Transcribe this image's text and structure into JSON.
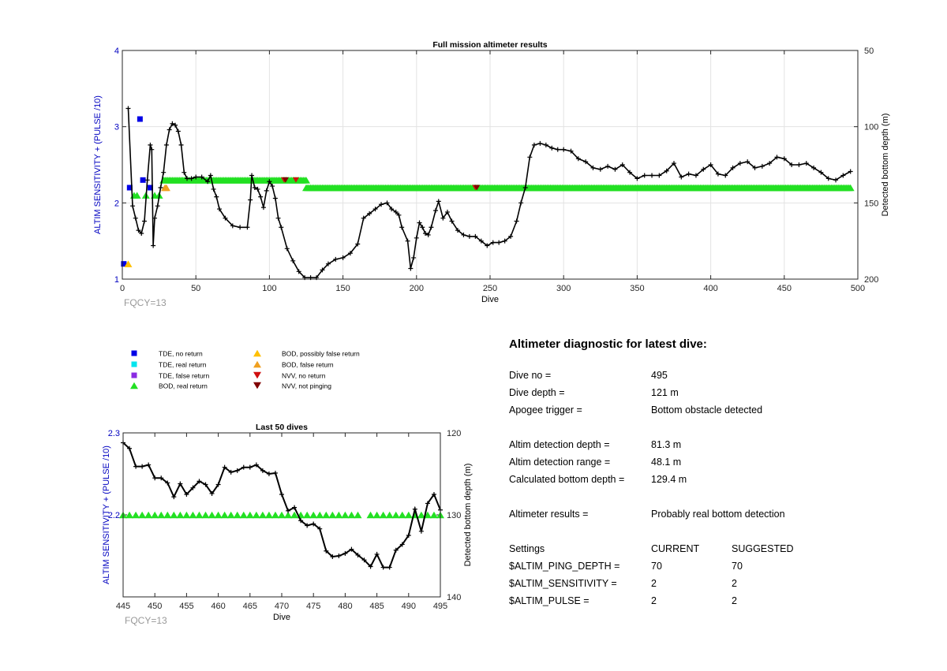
{
  "chart_data": [
    {
      "type": "scatter",
      "title": "Full mission altimeter results",
      "xlabel": "Dive",
      "ylabel_left": "ALTIM SENSITIVITY + (PULSE /10)",
      "ylabel_right": "Detected bottom depth (m)",
      "annotation": "FQCY=13",
      "xlim": [
        0,
        500
      ],
      "ylim_left": [
        1,
        4
      ],
      "ylim_right": [
        50,
        200
      ],
      "right_axis_reversed": true,
      "x_ticks": [
        0,
        50,
        100,
        150,
        200,
        250,
        300,
        350,
        400,
        450,
        500
      ],
      "y_left_ticks": [
        1,
        2,
        3,
        4
      ],
      "y_right_ticks": [
        50,
        100,
        150,
        200
      ],
      "grid": true,
      "markers": [
        {
          "name": "TDE, no return",
          "color": "#0000e6",
          "points": [
            [
              1,
              1.2
            ],
            [
              5,
              2.2
            ],
            [
              12,
              3.1
            ],
            [
              14,
              2.3
            ],
            [
              19,
              2.2
            ]
          ]
        },
        {
          "name": "BOD, possibly false return",
          "color": "#ffc000",
          "points": [
            [
              4,
              1.2
            ]
          ]
        },
        {
          "name": "BOD, false return",
          "color": "#f0a020",
          "points": [
            [
              29,
              2.2
            ],
            [
              30,
              2.2
            ]
          ]
        },
        {
          "name": "BOD, real return (2.3)",
          "color": "#22e022",
          "range": [
            28,
            125
          ],
          "y": 2.3
        },
        {
          "name": "BOD, real return (2.2)",
          "color": "#22e022",
          "range": [
            125,
            495
          ],
          "y": 2.2
        },
        {
          "name": "BOD, real return (early)",
          "color": "#22e022",
          "points": [
            [
              8,
              2.1
            ],
            [
              10,
              2.1
            ],
            [
              16,
              2.1
            ],
            [
              22,
              2.1
            ],
            [
              25,
              2.1
            ]
          ]
        },
        {
          "name": "NVV, no return",
          "color": "#d01010",
          "points": [
            [
              110,
              2.3
            ],
            [
              118,
              2.3
            ],
            [
              240,
              2.2
            ]
          ]
        },
        {
          "name": "NVV, not pinging",
          "color": "#800000",
          "points": [
            [
              111,
              2.3
            ],
            [
              241,
              2.2
            ]
          ]
        }
      ],
      "bottom_depth": [
        [
          4,
          88
        ],
        [
          7,
          152
        ],
        [
          9,
          160
        ],
        [
          11,
          168
        ],
        [
          13,
          170
        ],
        [
          15,
          162
        ],
        [
          17,
          135
        ],
        [
          19,
          112
        ],
        [
          20,
          115
        ],
        [
          21,
          178
        ],
        [
          22,
          160
        ],
        [
          24,
          152
        ],
        [
          26,
          140
        ],
        [
          28,
          130
        ],
        [
          30,
          112
        ],
        [
          32,
          102
        ],
        [
          34,
          98
        ],
        [
          36,
          99
        ],
        [
          38,
          103
        ],
        [
          40,
          112
        ],
        [
          42,
          130
        ],
        [
          44,
          134
        ],
        [
          47,
          134
        ],
        [
          50,
          133
        ],
        [
          54,
          133
        ],
        [
          58,
          136
        ],
        [
          60,
          132
        ],
        [
          62,
          141
        ],
        [
          64,
          146
        ],
        [
          66,
          154
        ],
        [
          70,
          160
        ],
        [
          75,
          165
        ],
        [
          80,
          166
        ],
        [
          85,
          166
        ],
        [
          87,
          148
        ],
        [
          88,
          132
        ],
        [
          90,
          140
        ],
        [
          92,
          141
        ],
        [
          94,
          146
        ],
        [
          96,
          153
        ],
        [
          98,
          142
        ],
        [
          100,
          136
        ],
        [
          102,
          139
        ],
        [
          104,
          147
        ],
        [
          106,
          160
        ],
        [
          108,
          166
        ],
        [
          112,
          180
        ],
        [
          116,
          188
        ],
        [
          120,
          195
        ],
        [
          124,
          199
        ],
        [
          128,
          199
        ],
        [
          132,
          199
        ],
        [
          136,
          194
        ],
        [
          140,
          190
        ],
        [
          145,
          187
        ],
        [
          150,
          186
        ],
        [
          155,
          183
        ],
        [
          160,
          177
        ],
        [
          164,
          160
        ],
        [
          168,
          157
        ],
        [
          172,
          154
        ],
        [
          176,
          151
        ],
        [
          180,
          150
        ],
        [
          183,
          154
        ],
        [
          186,
          156
        ],
        [
          188,
          158
        ],
        [
          190,
          166
        ],
        [
          194,
          175
        ],
        [
          196,
          193
        ],
        [
          198,
          186
        ],
        [
          200,
          173
        ],
        [
          202,
          163
        ],
        [
          204,
          166
        ],
        [
          206,
          170
        ],
        [
          208,
          171
        ],
        [
          210,
          166
        ],
        [
          213,
          155
        ],
        [
          215,
          149
        ],
        [
          218,
          160
        ],
        [
          221,
          156
        ],
        [
          224,
          162
        ],
        [
          228,
          168
        ],
        [
          232,
          171
        ],
        [
          236,
          172
        ],
        [
          240,
          172
        ],
        [
          244,
          175
        ],
        [
          248,
          178
        ],
        [
          252,
          176
        ],
        [
          256,
          176
        ],
        [
          260,
          175
        ],
        [
          264,
          172
        ],
        [
          268,
          162
        ],
        [
          271,
          150
        ],
        [
          274,
          140
        ],
        [
          277,
          120
        ],
        [
          280,
          112
        ],
        [
          284,
          111
        ],
        [
          288,
          112
        ],
        [
          292,
          114
        ],
        [
          296,
          115
        ],
        [
          300,
          115
        ],
        [
          305,
          116
        ],
        [
          310,
          121
        ],
        [
          315,
          123
        ],
        [
          320,
          127
        ],
        [
          325,
          128
        ],
        [
          330,
          126
        ],
        [
          335,
          128
        ],
        [
          340,
          125
        ],
        [
          345,
          130
        ],
        [
          350,
          134
        ],
        [
          355,
          132
        ],
        [
          360,
          132
        ],
        [
          365,
          132
        ],
        [
          370,
          129
        ],
        [
          375,
          124
        ],
        [
          380,
          133
        ],
        [
          385,
          131
        ],
        [
          390,
          132
        ],
        [
          395,
          128
        ],
        [
          400,
          125
        ],
        [
          405,
          131
        ],
        [
          410,
          132
        ],
        [
          415,
          127
        ],
        [
          420,
          124
        ],
        [
          425,
          123
        ],
        [
          430,
          127
        ],
        [
          435,
          126
        ],
        [
          440,
          124
        ],
        [
          445,
          120
        ],
        [
          450,
          121
        ],
        [
          455,
          125
        ],
        [
          460,
          125
        ],
        [
          465,
          124
        ],
        [
          470,
          127
        ],
        [
          475,
          130
        ],
        [
          480,
          134
        ],
        [
          485,
          135
        ],
        [
          490,
          132
        ],
        [
          495,
          129.4
        ]
      ]
    },
    {
      "type": "scatter",
      "title": "Last 50 dives",
      "xlabel": "Dive",
      "ylabel_left": "ALTIM SENSITIVITY + (PULSE /10)",
      "ylabel_right": "Detected bottom depth (m)",
      "annotation": "FQCY=13",
      "xlim": [
        445,
        495
      ],
      "ylim_left": [
        2.1,
        2.3
      ],
      "ylim_right": [
        120,
        140
      ],
      "right_axis_reversed": true,
      "x_ticks": [
        445,
        450,
        455,
        460,
        465,
        470,
        475,
        480,
        485,
        490,
        495
      ],
      "y_left_ticks": [
        2.2,
        2.3
      ],
      "y_right_ticks": [
        120,
        130,
        140
      ],
      "grid": false,
      "bod_real_return": {
        "y": 2.2,
        "x": [
          445,
          446,
          447,
          448,
          449,
          450,
          451,
          452,
          453,
          454,
          455,
          456,
          457,
          458,
          459,
          460,
          461,
          462,
          463,
          464,
          465,
          466,
          467,
          468,
          469,
          470,
          471,
          472,
          473,
          474,
          475,
          476,
          477,
          478,
          479,
          480,
          481,
          482,
          484,
          485,
          486,
          487,
          488,
          489,
          490,
          491,
          492,
          493,
          494,
          495
        ]
      },
      "bottom_depth": [
        [
          445,
          121.2
        ],
        [
          446,
          121.9
        ],
        [
          447,
          124.1
        ],
        [
          448,
          124.1
        ],
        [
          449,
          123.9
        ],
        [
          450,
          125.5
        ],
        [
          451,
          125.5
        ],
        [
          452,
          126.1
        ],
        [
          453,
          127.8
        ],
        [
          454,
          126.2
        ],
        [
          455,
          127.5
        ],
        [
          456,
          126.7
        ],
        [
          457,
          125.9
        ],
        [
          458,
          126.3
        ],
        [
          459,
          127.4
        ],
        [
          460,
          126.3
        ],
        [
          461,
          124.2
        ],
        [
          462,
          124.8
        ],
        [
          463,
          124.6
        ],
        [
          464,
          124.2
        ],
        [
          465,
          124.2
        ],
        [
          466,
          123.9
        ],
        [
          467,
          124.6
        ],
        [
          468,
          125.0
        ],
        [
          469,
          124.9
        ],
        [
          470,
          127.5
        ],
        [
          471,
          129.5
        ],
        [
          472,
          129.1
        ],
        [
          473,
          130.7
        ],
        [
          474,
          131.3
        ],
        [
          475,
          131.1
        ],
        [
          476,
          131.7
        ],
        [
          477,
          134.4
        ],
        [
          478,
          135.1
        ],
        [
          479,
          135.0
        ],
        [
          480,
          134.7
        ],
        [
          481,
          134.2
        ],
        [
          482,
          134.9
        ],
        [
          483,
          135.5
        ],
        [
          484,
          136.3
        ],
        [
          485,
          134.8
        ],
        [
          486,
          136.4
        ],
        [
          487,
          136.4
        ],
        [
          488,
          134.3
        ],
        [
          489,
          133.6
        ],
        [
          490,
          132.5
        ],
        [
          491,
          129.3
        ],
        [
          492,
          132.0
        ],
        [
          493,
          128.6
        ],
        [
          494,
          127.5
        ],
        [
          495,
          129.4
        ]
      ]
    }
  ],
  "legend": [
    {
      "label": "TDE, no return",
      "shape": "square",
      "color": "#0000e6"
    },
    {
      "label": "TDE, real return",
      "shape": "square",
      "color": "#00e5ee"
    },
    {
      "label": "TDE, false return",
      "shape": "square",
      "color": "#8a2be2"
    },
    {
      "label": "BOD, real return",
      "shape": "triangle-up",
      "color": "#22e022"
    },
    {
      "label": "BOD, possibly false return",
      "shape": "triangle-up",
      "color": "#ffc000"
    },
    {
      "label": "BOD, false return",
      "shape": "triangle-up",
      "color": "#f0a020"
    },
    {
      "label": "NVV, no return",
      "shape": "triangle-down",
      "color": "#d01010"
    },
    {
      "label": "NVV, not pinging",
      "shape": "triangle-down",
      "color": "#800000"
    }
  ],
  "diagnostic": {
    "title": "Altimeter diagnostic for latest dive:",
    "dive_no_label": "Dive no =",
    "dive_no": "495",
    "dive_depth_label": "Dive depth =",
    "dive_depth": "121 m",
    "apogee_label": "Apogee trigger =",
    "apogee": "Bottom obstacle detected",
    "altim_depth_label": "Altim detection depth =",
    "altim_depth": "81.3 m",
    "altim_range_label": "Altim detection range =",
    "altim_range": "48.1 m",
    "calc_bottom_label": "Calculated bottom depth =",
    "calc_bottom": "129.4 m",
    "results_label": "Altimeter results =",
    "results": "Probably real bottom detection",
    "settings_label": "Settings",
    "current_label": "CURRENT",
    "suggested_label": "SUGGESTED",
    "ping_depth_label": "$ALTIM_PING_DEPTH =",
    "ping_depth_current": "70",
    "ping_depth_suggested": "70",
    "sensitivity_label": "$ALTIM_SENSITIVITY =",
    "sensitivity_current": "2",
    "sensitivity_suggested": "2",
    "pulse_label": "$ALTIM_PULSE =",
    "pulse_current": "2",
    "pulse_suggested": "2"
  }
}
